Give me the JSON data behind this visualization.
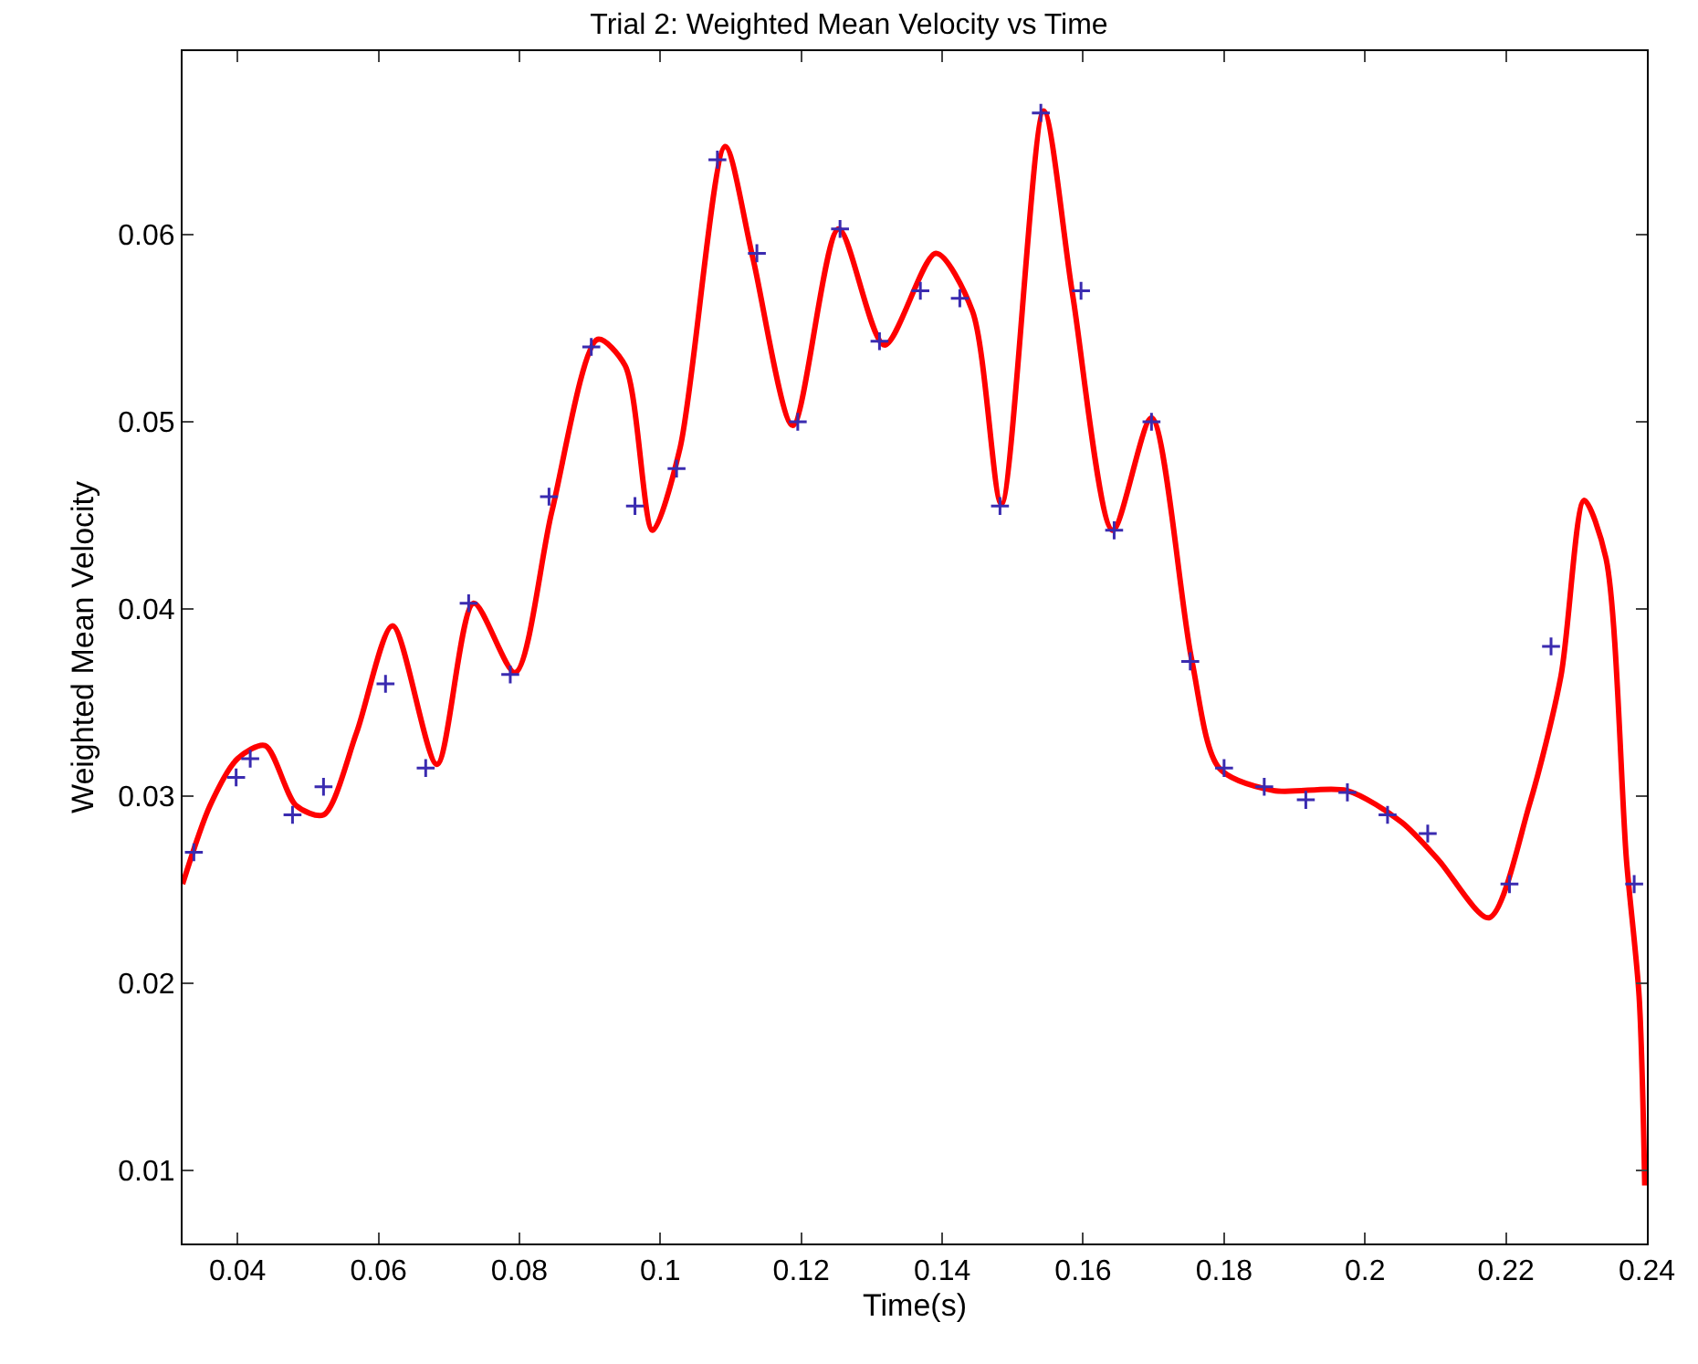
{
  "chart_data": {
    "type": "line",
    "title": "Trial 2: Weighted Mean Velocity vs Time",
    "xlabel": "Time(s)",
    "ylabel": "Weighted Mean Velocity",
    "xlim": [
      0.0322,
      0.24
    ],
    "ylim": [
      0.0061,
      0.0698
    ],
    "xticks": [
      0.04,
      0.06,
      0.08,
      0.1,
      0.12,
      0.14,
      0.16,
      0.18,
      0.2,
      0.22,
      0.24
    ],
    "yticks": [
      0.01,
      0.02,
      0.03,
      0.04,
      0.05,
      0.06
    ],
    "series": [
      {
        "color": "#ff0000",
        "marker": "none",
        "x": [
          0.0322,
          0.0361,
          0.04,
          0.0439,
          0.0483,
          0.0522,
          0.0569,
          0.062,
          0.0683,
          0.0735,
          0.0794,
          0.0846,
          0.0911,
          0.095,
          0.0989,
          0.1028,
          0.1092,
          0.1131,
          0.1188,
          0.1253,
          0.1318,
          0.1391,
          0.1443,
          0.1484,
          0.1544,
          0.1585,
          0.1642,
          0.1697,
          0.1754,
          0.1793,
          0.187,
          0.1974,
          0.2052,
          0.2104,
          0.2176,
          0.2233,
          0.2278,
          0.2311,
          0.2342,
          0.2371,
          0.2389,
          0.2397
        ],
        "values": [
          0.0253,
          0.0295,
          0.032,
          0.0327,
          0.0295,
          0.029,
          0.0334,
          0.0391,
          0.0317,
          0.0403,
          0.0366,
          0.0452,
          0.0544,
          0.053,
          0.0442,
          0.0486,
          0.0647,
          0.0588,
          0.0498,
          0.0603,
          0.0541,
          0.059,
          0.0559,
          0.0456,
          0.0666,
          0.0568,
          0.0442,
          0.0502,
          0.0373,
          0.0315,
          0.0303,
          0.0303,
          0.0286,
          0.0266,
          0.0235,
          0.0295,
          0.0364,
          0.0458,
          0.0427,
          0.0266,
          0.0193,
          0.0092
        ]
      },
      {
        "type": "scatter",
        "color": "#3a2bb0",
        "marker": "cross",
        "x": [
          0.0338,
          0.0398,
          0.0418,
          0.0478,
          0.0522,
          0.061,
          0.0667,
          0.0728,
          0.0787,
          0.0842,
          0.0902,
          0.0964,
          0.1023,
          0.1081,
          0.1137,
          0.1195,
          0.1255,
          0.1311,
          0.1369,
          0.1425,
          0.1482,
          0.154,
          0.1597,
          0.1644,
          0.1697,
          0.1752,
          0.18,
          0.1857,
          0.1916,
          0.1975,
          0.2032,
          0.2089,
          0.2205,
          0.2264,
          0.2382
        ],
        "values": [
          0.027,
          0.031,
          0.032,
          0.029,
          0.0305,
          0.036,
          0.0315,
          0.0403,
          0.0365,
          0.046,
          0.054,
          0.0455,
          0.0475,
          0.064,
          0.059,
          0.05,
          0.0603,
          0.0543,
          0.057,
          0.0566,
          0.0455,
          0.0665,
          0.057,
          0.0442,
          0.05,
          0.0372,
          0.0315,
          0.0305,
          0.0298,
          0.0302,
          0.029,
          0.028,
          0.0253,
          0.038,
          0.0253
        ]
      }
    ]
  }
}
